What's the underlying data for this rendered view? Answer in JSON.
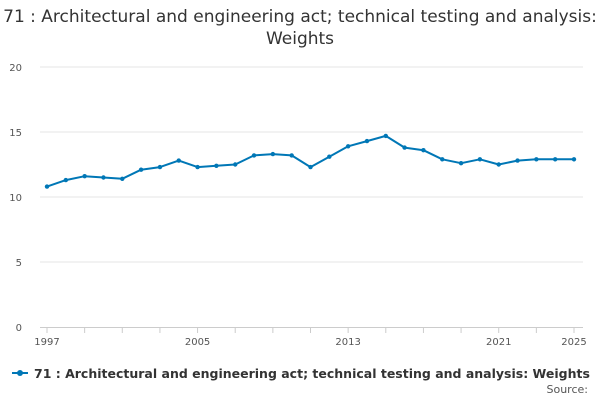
{
  "chart_data": {
    "type": "line",
    "title": "71 : Architectural and engineering act; technical testing and analysis: Weights",
    "xlabel": "",
    "ylabel": "",
    "x": [
      1997,
      1998,
      1999,
      2000,
      2001,
      2002,
      2003,
      2004,
      2005,
      2006,
      2007,
      2008,
      2009,
      2010,
      2011,
      2012,
      2013,
      2014,
      2015,
      2016,
      2017,
      2018,
      2019,
      2020,
      2021,
      2022,
      2023,
      2024,
      2025
    ],
    "x_ticks": [
      "1997",
      "2005",
      "2013",
      "2021",
      "2025"
    ],
    "y_ticks": [
      "0",
      "5",
      "10",
      "15",
      "20"
    ],
    "ylim": [
      0,
      20
    ],
    "xlim": [
      1997,
      2025
    ],
    "grid": true,
    "legend_position": "bottom-left",
    "series": [
      {
        "name": "71 : Architectural and engineering act; technical testing and analysis: Weights",
        "color": "#0077b6",
        "values": [
          10.8,
          11.3,
          11.6,
          11.5,
          11.4,
          12.1,
          12.3,
          12.8,
          12.3,
          12.4,
          12.5,
          13.2,
          13.3,
          13.2,
          12.3,
          13.1,
          13.9,
          14.3,
          14.7,
          13.8,
          13.6,
          12.9,
          12.6,
          12.9,
          12.5,
          12.8,
          12.9,
          12.9,
          12.9
        ]
      }
    ]
  },
  "footer": {
    "source_label": "Source:"
  }
}
